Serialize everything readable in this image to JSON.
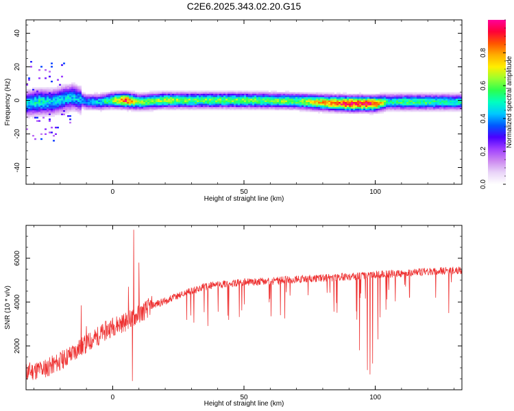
{
  "title": "C2E6.2025.343.02.20.G15",
  "chart_data": [
    {
      "type": "heatmap",
      "xlabel": "Height of straight line (km)",
      "ylabel": "Frequency (Hz)",
      "xlim": [
        -33,
        133
      ],
      "ylim": [
        -50,
        48
      ],
      "xticks": [
        "0",
        "50",
        "100"
      ],
      "yticks": [
        "-40",
        "-20",
        "0",
        "20",
        "40"
      ],
      "colorbar": {
        "label": "Normalized spectral amplitude",
        "range": [
          0,
          1
        ],
        "ticks": [
          "0.0",
          "0.2",
          "0.4",
          "0.6",
          "0.8"
        ],
        "colors": [
          "#ffffff",
          "#e9d5f8",
          "#cc88f0",
          "#a040ff",
          "#4b00ff",
          "#0057ff",
          "#00c8ff",
          "#00ffc0",
          "#2bff4f",
          "#9aff2e",
          "#ffee00",
          "#ffae00",
          "#ff5500",
          "#ff0038",
          "#ff0098"
        ]
      },
      "ridge": [
        {
          "x": -33,
          "f": -2,
          "amp": 0.45
        },
        {
          "x": -28,
          "f": -1,
          "amp": 0.5
        },
        {
          "x": -23,
          "f": -1,
          "amp": 0.45
        },
        {
          "x": -18,
          "f": 1,
          "amp": 0.45
        },
        {
          "x": -15,
          "f": 2,
          "amp": 0.45
        },
        {
          "x": -10,
          "f": -1,
          "amp": 0.4
        },
        {
          "x": -5,
          "f": -1,
          "amp": 0.45
        },
        {
          "x": 0,
          "f": 0,
          "amp": 0.6
        },
        {
          "x": 5,
          "f": 0,
          "amp": 0.9
        },
        {
          "x": 10,
          "f": -1,
          "amp": 0.6
        },
        {
          "x": 20,
          "f": 0,
          "amp": 0.65
        },
        {
          "x": 30,
          "f": 0,
          "amp": 0.6
        },
        {
          "x": 50,
          "f": 0,
          "amp": 0.6
        },
        {
          "x": 70,
          "f": -0.5,
          "amp": 0.6
        },
        {
          "x": 82,
          "f": -1.5,
          "amp": 0.8
        },
        {
          "x": 90,
          "f": -2,
          "amp": 0.95
        },
        {
          "x": 100,
          "f": -2,
          "amp": 0.9
        },
        {
          "x": 105,
          "f": -1,
          "amp": 0.5
        },
        {
          "x": 110,
          "f": -1,
          "amp": 0.55
        },
        {
          "x": 120,
          "f": -1,
          "amp": 0.55
        },
        {
          "x": 133,
          "f": -1,
          "amp": 0.5
        }
      ]
    },
    {
      "type": "line",
      "xlabel": "Height of straight line (km)",
      "ylabel": "SNR (10 * v/v)",
      "xlim": [
        -33,
        133
      ],
      "ylim": [
        0,
        7500
      ],
      "xticks": [
        "0",
        "50",
        "100"
      ],
      "yticks": [
        "2000",
        "4000",
        "6000"
      ],
      "color": "#ee3333",
      "trend": [
        [
          -33,
          800
        ],
        [
          -25,
          1000
        ],
        [
          -20,
          1300
        ],
        [
          -15,
          1700
        ],
        [
          -10,
          2100
        ],
        [
          -5,
          2500
        ],
        [
          0,
          2900
        ],
        [
          5,
          3100
        ],
        [
          8,
          3300
        ],
        [
          12,
          3600
        ],
        [
          15,
          3850
        ],
        [
          20,
          4050
        ],
        [
          25,
          4300
        ],
        [
          30,
          4500
        ],
        [
          35,
          4700
        ],
        [
          40,
          4800
        ],
        [
          50,
          4900
        ],
        [
          60,
          4950
        ],
        [
          70,
          5050
        ],
        [
          80,
          5100
        ],
        [
          90,
          5150
        ],
        [
          100,
          5250
        ],
        [
          110,
          5300
        ],
        [
          120,
          5400
        ],
        [
          133,
          5450
        ]
      ],
      "spikes": [
        {
          "x": 8,
          "y": 7300
        },
        {
          "x": 7.5,
          "y": 400
        },
        {
          "x": 6,
          "y": 4700
        },
        {
          "x": 10,
          "y": 5800
        },
        {
          "x": -12,
          "y": 3850
        },
        {
          "x": -10,
          "y": 2900
        }
      ],
      "dips": [
        {
          "x": 93,
          "y": 3200
        },
        {
          "x": 94,
          "y": 1800
        },
        {
          "x": 97,
          "y": 900
        },
        {
          "x": 98,
          "y": 700
        },
        {
          "x": 99,
          "y": 1200
        },
        {
          "x": 101,
          "y": 2300
        },
        {
          "x": 113,
          "y": 4200
        },
        {
          "x": 123,
          "y": 4200
        },
        {
          "x": 128,
          "y": 3500
        }
      ]
    }
  ]
}
